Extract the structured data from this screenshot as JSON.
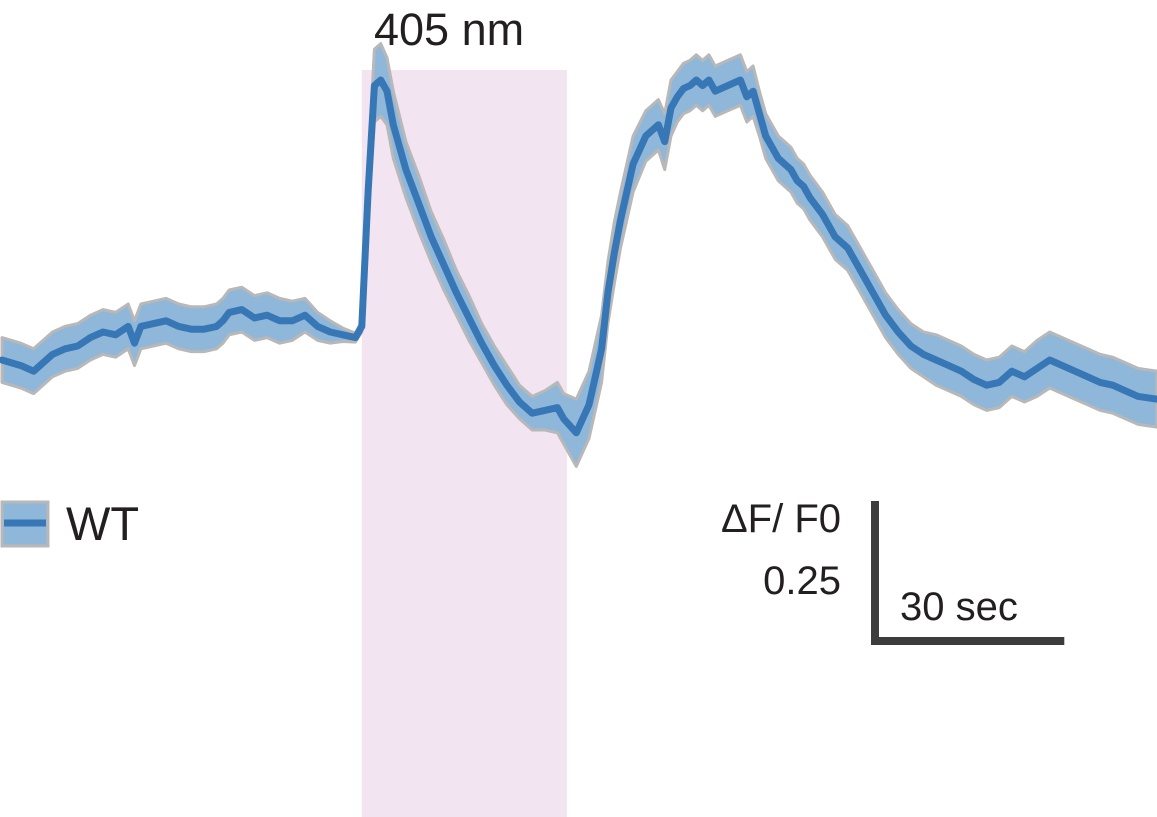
{
  "chart_data": {
    "type": "line",
    "title": "",
    "xlabel": "",
    "ylabel": "",
    "x_unit": "sec",
    "y_unit": "ΔF/F0",
    "xlim": [
      0,
      183
    ],
    "ylim": [
      -0.5,
      0.65
    ],
    "stimulus": {
      "label": "405 nm",
      "start": 57,
      "end": 89.5,
      "color": "#f3e4f2"
    },
    "scale_bar": {
      "y_label_line1": "ΔF/ F0",
      "y_label_line2": "0.25",
      "y_value": 0.25,
      "x_label": "30 sec",
      "x_value": 30
    },
    "legend": {
      "label": "WT",
      "placement": "left"
    },
    "colors": {
      "line": "#3877b6",
      "band": "#8fb7da",
      "band_edge": "#b8b8b8",
      "scale_bar": "#3c3c3c"
    },
    "series": [
      {
        "name": "WT",
        "x": [
          0,
          3,
          5,
          8,
          10,
          12,
          14,
          16,
          18,
          20,
          21,
          22,
          24,
          26,
          28,
          30,
          32,
          34,
          35,
          36,
          38,
          40,
          42,
          44,
          46,
          48,
          50,
          52,
          54,
          56,
          57,
          58,
          59,
          60,
          61,
          62,
          63,
          64,
          66,
          68,
          70,
          72,
          74,
          76,
          78,
          80,
          82,
          84,
          86,
          88,
          89,
          91,
          93,
          95,
          96,
          97,
          98,
          100,
          102,
          104,
          105,
          106,
          107,
          108,
          109,
          110,
          111,
          112,
          113,
          115,
          117,
          118,
          119,
          120,
          121,
          122,
          123,
          124,
          125,
          126,
          127,
          128,
          130,
          132,
          134,
          136,
          138,
          140,
          142,
          144,
          146,
          148,
          150,
          152,
          154,
          156,
          158,
          160,
          162,
          164,
          166,
          168,
          170,
          172,
          174,
          176,
          178,
          180,
          183
        ],
        "y": [
          0.0,
          -0.01,
          -0.02,
          0.01,
          0.02,
          0.025,
          0.04,
          0.05,
          0.045,
          0.06,
          0.03,
          0.06,
          0.065,
          0.07,
          0.06,
          0.055,
          0.055,
          0.06,
          0.07,
          0.085,
          0.09,
          0.075,
          0.08,
          0.07,
          0.07,
          0.08,
          0.06,
          0.05,
          0.045,
          0.04,
          0.06,
          0.3,
          0.49,
          0.5,
          0.48,
          0.42,
          0.38,
          0.34,
          0.28,
          0.22,
          0.17,
          0.12,
          0.075,
          0.03,
          -0.01,
          -0.045,
          -0.075,
          -0.095,
          -0.09,
          -0.085,
          -0.105,
          -0.13,
          -0.08,
          0.02,
          0.12,
          0.19,
          0.25,
          0.35,
          0.4,
          0.42,
          0.39,
          0.45,
          0.47,
          0.485,
          0.49,
          0.5,
          0.49,
          0.5,
          0.48,
          0.49,
          0.5,
          0.47,
          0.48,
          0.44,
          0.4,
          0.38,
          0.36,
          0.35,
          0.34,
          0.32,
          0.31,
          0.29,
          0.26,
          0.22,
          0.2,
          0.16,
          0.12,
          0.08,
          0.05,
          0.025,
          0.01,
          0.0,
          -0.01,
          -0.02,
          -0.035,
          -0.045,
          -0.04,
          -0.02,
          -0.03,
          -0.015,
          0.0,
          -0.01,
          -0.02,
          -0.03,
          -0.04,
          -0.045,
          -0.055,
          -0.065,
          -0.07
        ],
        "sem": [
          0.04,
          0.04,
          0.04,
          0.04,
          0.04,
          0.04,
          0.04,
          0.04,
          0.04,
          0.04,
          0.04,
          0.04,
          0.04,
          0.04,
          0.04,
          0.04,
          0.04,
          0.04,
          0.04,
          0.04,
          0.04,
          0.04,
          0.04,
          0.04,
          0.035,
          0.03,
          0.025,
          0.02,
          0.012,
          0.008,
          0.01,
          0.04,
          0.065,
          0.065,
          0.06,
          0.06,
          0.055,
          0.05,
          0.05,
          0.045,
          0.045,
          0.04,
          0.04,
          0.035,
          0.035,
          0.035,
          0.03,
          0.03,
          0.035,
          0.045,
          0.045,
          0.06,
          0.06,
          0.06,
          0.055,
          0.055,
          0.05,
          0.05,
          0.045,
          0.045,
          0.05,
          0.05,
          0.045,
          0.045,
          0.045,
          0.045,
          0.045,
          0.045,
          0.045,
          0.045,
          0.045,
          0.045,
          0.045,
          0.04,
          0.04,
          0.04,
          0.04,
          0.04,
          0.04,
          0.04,
          0.04,
          0.04,
          0.04,
          0.04,
          0.04,
          0.04,
          0.04,
          0.04,
          0.04,
          0.04,
          0.04,
          0.045,
          0.045,
          0.045,
          0.045,
          0.045,
          0.045,
          0.045,
          0.045,
          0.05,
          0.05,
          0.05,
          0.05,
          0.05,
          0.05,
          0.05,
          0.05,
          0.05,
          0.05
        ]
      }
    ]
  }
}
